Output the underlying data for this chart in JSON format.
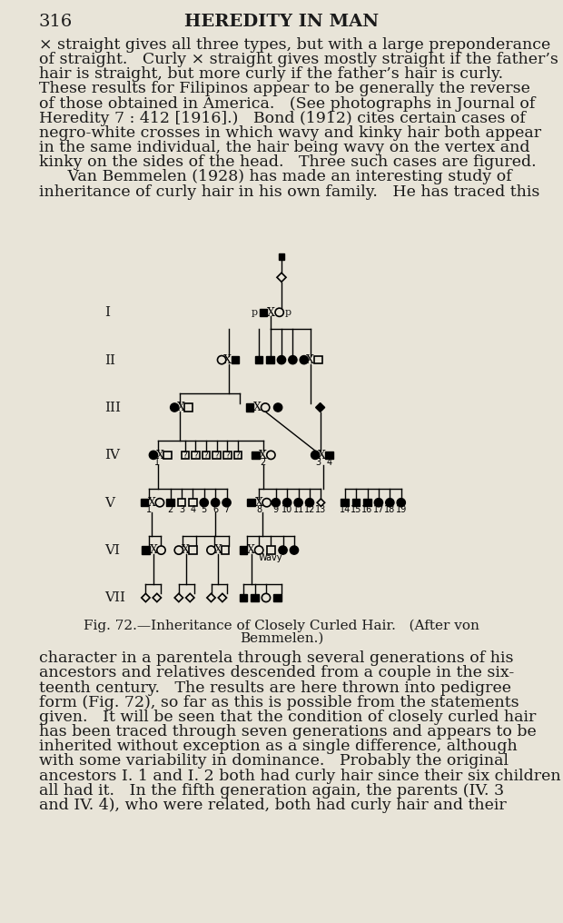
{
  "bg_color": "#e8e4d8",
  "text_color": "#1a1a1a",
  "page_number": "316",
  "title": "HEREDITY IN MAN",
  "fig_caption": "Fig. 72.—Inheritance of Closely Curled Hair.   (After von\nBemmelen.)",
  "top_paragraph": "× straight gives all three types, but with a large preponderance\nof straight.   Curly × straight gives mostly straight if the father’s\nhair is straight, but more curly if the father’s hair is curly.\nThese results for Filipinos appear to be generally the reverse\nof those obtained in America.   (See photographs in Journal of\nHeredity 7 : 412 [1916].)   Bond (1912) cites certain cases of\nnegro-white crosses in which wavy and kinky hair both appear\nin the same individual, the hair being wavy on the vertex and\nkinky on the sides of the head.   Three such cases are figured.\n   Van Bemmelen (1928) has made an interesting study of\ninheritance of curly hair in his own family.   He has traced this",
  "bottom_paragraph": "character in a parentela through several generations of his\nancestors and relatives descended from a couple in the six-\nteenth century.   The results are here thrown into pedigree\nform (Fig. 72), so far as this is possible from the statements\ngiven.   It will be seen that the condition of closely curled hair\nhas been traced through seven generations and appears to be\ninherited without exception as a single difference, although\nwith some variability in dominance.   Probably the original\nancestors I. 1 and I. 2 both had curly hair since their six children\nall had it.   In the fifth generation again, the parents (IV. 3\nand IV. 4), who were related, both had curly hair and their"
}
